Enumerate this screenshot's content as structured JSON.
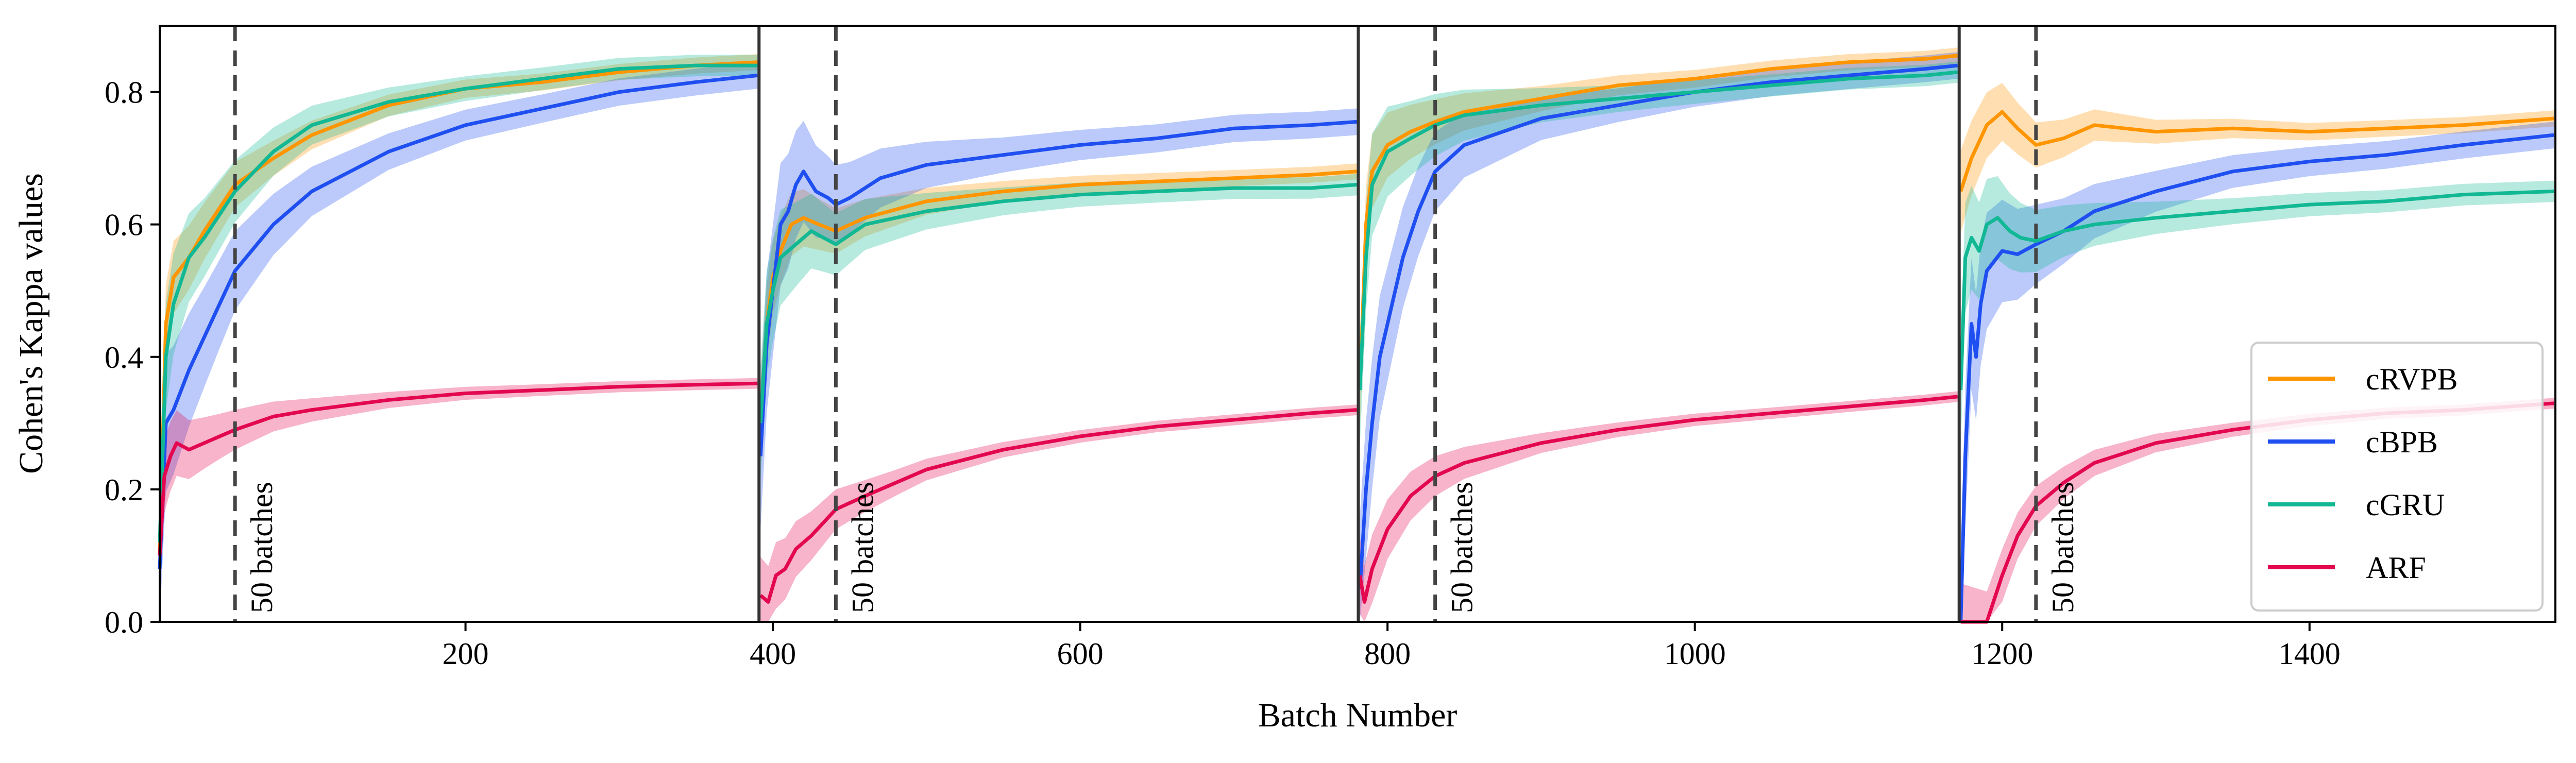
{
  "chart_data": {
    "type": "line",
    "xlabel": "Batch Number",
    "ylabel": "Cohen's Kappa values",
    "xlim": [
      1,
      1560
    ],
    "ylim": [
      0.0,
      0.9
    ],
    "x_ticks": [
      200,
      400,
      600,
      800,
      1000,
      1200,
      1400
    ],
    "x_tick_labels": [
      "200",
      "400",
      "600",
      "800",
      "1000",
      "1200",
      "1400"
    ],
    "y_ticks": [
      0.0,
      0.2,
      0.4,
      0.6,
      0.8
    ],
    "y_tick_labels": [
      "0.0",
      "0.2",
      "0.4",
      "0.6",
      "0.8"
    ],
    "grid": false,
    "legend": {
      "placement": "lower-right",
      "entries": [
        "cRVPB",
        "cBPB",
        "cGRU",
        "ARF"
      ]
    },
    "colors": {
      "cRVPB": "#ff9500",
      "cBPB": "#1f4ff0",
      "cGRU": "#12b894",
      "ARF": "#e3074f"
    },
    "boundaries": [
      391,
      781,
      1172
    ],
    "annotations": [
      {
        "x": 50,
        "text": "50 batches"
      },
      {
        "x": 441,
        "text": "50 batches"
      },
      {
        "x": 831,
        "text": "50 batches"
      },
      {
        "x": 1222,
        "text": "50 batches"
      }
    ],
    "series": [
      {
        "name": "cRVPB",
        "segments": [
          [
            [
              1,
              0.1
            ],
            [
              5,
              0.45
            ],
            [
              10,
              0.52
            ],
            [
              20,
              0.55
            ],
            [
              30,
              0.59
            ],
            [
              50,
              0.66
            ],
            [
              75,
              0.7
            ],
            [
              100,
              0.735
            ],
            [
              150,
              0.78
            ],
            [
              200,
              0.805
            ],
            [
              250,
              0.815
            ],
            [
              300,
              0.83
            ],
            [
              350,
              0.84
            ],
            [
              390,
              0.845
            ]
          ],
          [
            [
              392,
              0.3
            ],
            [
              396,
              0.45
            ],
            [
              400,
              0.52
            ],
            [
              405,
              0.56
            ],
            [
              412,
              0.6
            ],
            [
              420,
              0.61
            ],
            [
              430,
              0.6
            ],
            [
              441,
              0.59
            ],
            [
              460,
              0.61
            ],
            [
              500,
              0.635
            ],
            [
              550,
              0.65
            ],
            [
              600,
              0.66
            ],
            [
              650,
              0.665
            ],
            [
              700,
              0.67
            ],
            [
              750,
              0.675
            ],
            [
              780,
              0.68
            ]
          ],
          [
            [
              782,
              0.35
            ],
            [
              786,
              0.6
            ],
            [
              790,
              0.68
            ],
            [
              800,
              0.72
            ],
            [
              815,
              0.74
            ],
            [
              831,
              0.755
            ],
            [
              850,
              0.77
            ],
            [
              900,
              0.79
            ],
            [
              950,
              0.81
            ],
            [
              1000,
              0.82
            ],
            [
              1050,
              0.835
            ],
            [
              1100,
              0.845
            ],
            [
              1150,
              0.85
            ],
            [
              1171,
              0.855
            ]
          ],
          [
            [
              1173,
              0.65
            ],
            [
              1180,
              0.7
            ],
            [
              1190,
              0.75
            ],
            [
              1200,
              0.77
            ],
            [
              1210,
              0.745
            ],
            [
              1222,
              0.72
            ],
            [
              1240,
              0.73
            ],
            [
              1260,
              0.75
            ],
            [
              1300,
              0.74
            ],
            [
              1350,
              0.745
            ],
            [
              1400,
              0.74
            ],
            [
              1450,
              0.745
            ],
            [
              1500,
              0.75
            ],
            [
              1559,
              0.76
            ]
          ]
        ]
      },
      {
        "name": "cBPB",
        "segments": [
          [
            [
              1,
              0.08
            ],
            [
              5,
              0.3
            ],
            [
              10,
              0.32
            ],
            [
              20,
              0.38
            ],
            [
              30,
              0.43
            ],
            [
              40,
              0.48
            ],
            [
              50,
              0.53
            ],
            [
              75,
              0.6
            ],
            [
              100,
              0.65
            ],
            [
              150,
              0.71
            ],
            [
              200,
              0.75
            ],
            [
              250,
              0.775
            ],
            [
              300,
              0.8
            ],
            [
              350,
              0.815
            ],
            [
              390,
              0.825
            ]
          ],
          [
            [
              392,
              0.25
            ],
            [
              396,
              0.42
            ],
            [
              400,
              0.5
            ],
            [
              405,
              0.6
            ],
            [
              410,
              0.62
            ],
            [
              415,
              0.66
            ],
            [
              420,
              0.68
            ],
            [
              428,
              0.65
            ],
            [
              436,
              0.64
            ],
            [
              441,
              0.63
            ],
            [
              450,
              0.64
            ],
            [
              470,
              0.67
            ],
            [
              500,
              0.69
            ],
            [
              550,
              0.705
            ],
            [
              600,
              0.72
            ],
            [
              650,
              0.73
            ],
            [
              700,
              0.745
            ],
            [
              750,
              0.75
            ],
            [
              780,
              0.755
            ]
          ],
          [
            [
              782,
              0.05
            ],
            [
              786,
              0.2
            ],
            [
              790,
              0.3
            ],
            [
              795,
              0.4
            ],
            [
              800,
              0.45
            ],
            [
              810,
              0.55
            ],
            [
              820,
              0.62
            ],
            [
              831,
              0.68
            ],
            [
              850,
              0.72
            ],
            [
              900,
              0.76
            ],
            [
              950,
              0.78
            ],
            [
              1000,
              0.8
            ],
            [
              1050,
              0.815
            ],
            [
              1100,
              0.825
            ],
            [
              1150,
              0.835
            ],
            [
              1171,
              0.84
            ]
          ],
          [
            [
              1173,
              0.0
            ],
            [
              1176,
              0.25
            ],
            [
              1180,
              0.45
            ],
            [
              1183,
              0.4
            ],
            [
              1186,
              0.48
            ],
            [
              1190,
              0.53
            ],
            [
              1200,
              0.56
            ],
            [
              1210,
              0.555
            ],
            [
              1222,
              0.57
            ],
            [
              1240,
              0.59
            ],
            [
              1260,
              0.62
            ],
            [
              1300,
              0.65
            ],
            [
              1350,
              0.68
            ],
            [
              1400,
              0.695
            ],
            [
              1450,
              0.705
            ],
            [
              1500,
              0.72
            ],
            [
              1559,
              0.735
            ]
          ]
        ]
      },
      {
        "name": "cGRU",
        "segments": [
          [
            [
              1,
              0.12
            ],
            [
              5,
              0.4
            ],
            [
              10,
              0.48
            ],
            [
              20,
              0.55
            ],
            [
              30,
              0.58
            ],
            [
              50,
              0.65
            ],
            [
              75,
              0.71
            ],
            [
              100,
              0.75
            ],
            [
              150,
              0.785
            ],
            [
              200,
              0.805
            ],
            [
              250,
              0.82
            ],
            [
              300,
              0.835
            ],
            [
              350,
              0.84
            ],
            [
              390,
              0.84
            ]
          ],
          [
            [
              392,
              0.3
            ],
            [
              396,
              0.45
            ],
            [
              400,
              0.5
            ],
            [
              405,
              0.55
            ],
            [
              415,
              0.57
            ],
            [
              425,
              0.59
            ],
            [
              433,
              0.58
            ],
            [
              441,
              0.57
            ],
            [
              460,
              0.6
            ],
            [
              500,
              0.62
            ],
            [
              550,
              0.635
            ],
            [
              600,
              0.645
            ],
            [
              650,
              0.65
            ],
            [
              700,
              0.655
            ],
            [
              750,
              0.655
            ],
            [
              780,
              0.66
            ]
          ],
          [
            [
              782,
              0.35
            ],
            [
              786,
              0.55
            ],
            [
              790,
              0.66
            ],
            [
              800,
              0.71
            ],
            [
              815,
              0.73
            ],
            [
              831,
              0.75
            ],
            [
              850,
              0.765
            ],
            [
              900,
              0.78
            ],
            [
              950,
              0.79
            ],
            [
              1000,
              0.8
            ],
            [
              1050,
              0.81
            ],
            [
              1100,
              0.82
            ],
            [
              1150,
              0.825
            ],
            [
              1171,
              0.83
            ]
          ],
          [
            [
              1173,
              0.35
            ],
            [
              1176,
              0.55
            ],
            [
              1180,
              0.58
            ],
            [
              1185,
              0.56
            ],
            [
              1190,
              0.6
            ],
            [
              1197,
              0.61
            ],
            [
              1205,
              0.59
            ],
            [
              1212,
              0.58
            ],
            [
              1222,
              0.575
            ],
            [
              1240,
              0.59
            ],
            [
              1260,
              0.6
            ],
            [
              1300,
              0.61
            ],
            [
              1350,
              0.62
            ],
            [
              1400,
              0.63
            ],
            [
              1450,
              0.635
            ],
            [
              1500,
              0.645
            ],
            [
              1559,
              0.65
            ]
          ]
        ]
      },
      {
        "name": "ARF",
        "segments": [
          [
            [
              1,
              0.1
            ],
            [
              4,
              0.22
            ],
            [
              8,
              0.25
            ],
            [
              12,
              0.27
            ],
            [
              20,
              0.26
            ],
            [
              30,
              0.27
            ],
            [
              40,
              0.28
            ],
            [
              50,
              0.29
            ],
            [
              75,
              0.31
            ],
            [
              100,
              0.32
            ],
            [
              150,
              0.335
            ],
            [
              200,
              0.345
            ],
            [
              250,
              0.35
            ],
            [
              300,
              0.355
            ],
            [
              350,
              0.358
            ],
            [
              390,
              0.36
            ]
          ],
          [
            [
              392,
              0.04
            ],
            [
              397,
              0.03
            ],
            [
              402,
              0.07
            ],
            [
              408,
              0.08
            ],
            [
              415,
              0.11
            ],
            [
              425,
              0.13
            ],
            [
              441,
              0.17
            ],
            [
              460,
              0.19
            ],
            [
              480,
              0.21
            ],
            [
              500,
              0.23
            ],
            [
              550,
              0.26
            ],
            [
              600,
              0.28
            ],
            [
              650,
              0.295
            ],
            [
              700,
              0.305
            ],
            [
              750,
              0.315
            ],
            [
              780,
              0.32
            ]
          ],
          [
            [
              782,
              0.07
            ],
            [
              785,
              0.03
            ],
            [
              790,
              0.08
            ],
            [
              800,
              0.14
            ],
            [
              815,
              0.19
            ],
            [
              831,
              0.22
            ],
            [
              850,
              0.24
            ],
            [
              900,
              0.27
            ],
            [
              950,
              0.29
            ],
            [
              1000,
              0.305
            ],
            [
              1050,
              0.315
            ],
            [
              1100,
              0.325
            ],
            [
              1150,
              0.335
            ],
            [
              1171,
              0.34
            ]
          ],
          [
            [
              1173,
              0.0
            ],
            [
              1190,
              0.0
            ],
            [
              1200,
              0.07
            ],
            [
              1210,
              0.13
            ],
            [
              1222,
              0.175
            ],
            [
              1240,
              0.21
            ],
            [
              1260,
              0.24
            ],
            [
              1300,
              0.27
            ],
            [
              1350,
              0.29
            ],
            [
              1400,
              0.305
            ],
            [
              1450,
              0.315
            ],
            [
              1500,
              0.32
            ],
            [
              1559,
              0.33
            ]
          ]
        ]
      }
    ]
  }
}
